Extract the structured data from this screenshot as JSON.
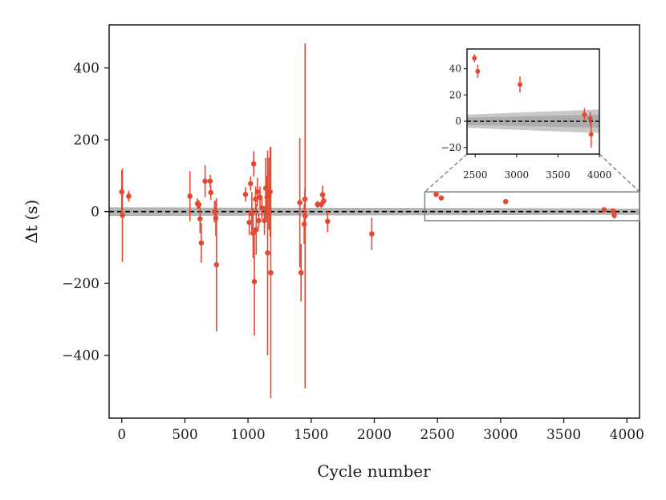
{
  "chart_data": {
    "type": "scatter",
    "xlabel": "Cycle number",
    "ylabel": "Δt (s)",
    "xlim": [
      -100,
      4100
    ],
    "ylim": [
      -575,
      520
    ],
    "xticks": [
      0,
      500,
      1000,
      1500,
      2000,
      2500,
      3000,
      3500,
      4000
    ],
    "yticks": [
      -400,
      -200,
      0,
      200,
      400
    ],
    "xtick_labels": [
      "0",
      "500",
      "1000",
      "1500",
      "2000",
      "2500",
      "3000",
      "3500",
      "4000"
    ],
    "ytick_labels": [
      "−400",
      "−200",
      "0",
      "200",
      "400"
    ],
    "point_color": "#e34a33",
    "band_color": "#9a9a9a",
    "reference_line": {
      "value": 0,
      "style": "dashed",
      "color": "#000000"
    },
    "band": {
      "x": [
        -100,
        4100
      ],
      "halfwidth": [
        12,
        9
      ]
    },
    "series": [
      {
        "points": [
          {
            "x": 0,
            "y": 55,
            "err": 60
          },
          {
            "x": 5,
            "y": -10,
            "err": 130
          },
          {
            "x": 55,
            "y": 43,
            "err": 15
          },
          {
            "x": 540,
            "y": 43,
            "err": 70
          },
          {
            "x": 600,
            "y": 22,
            "err": 15
          },
          {
            "x": 610,
            "y": 20,
            "err": 12
          },
          {
            "x": 620,
            "y": -20,
            "err": 40
          },
          {
            "x": 630,
            "y": -87,
            "err": 55
          },
          {
            "x": 660,
            "y": 85,
            "err": 45
          },
          {
            "x": 700,
            "y": 85,
            "err": 18
          },
          {
            "x": 705,
            "y": 53,
            "err": 20
          },
          {
            "x": 735,
            "y": 0,
            "err": 30
          },
          {
            "x": 745,
            "y": -18,
            "err": 50
          },
          {
            "x": 750,
            "y": -148,
            "err": 185
          },
          {
            "x": 980,
            "y": 48,
            "err": 20
          },
          {
            "x": 1010,
            "y": -30,
            "err": 35
          },
          {
            "x": 1020,
            "y": 78,
            "err": 20
          },
          {
            "x": 1030,
            "y": -5,
            "err": 60
          },
          {
            "x": 1040,
            "y": -60,
            "err": 70
          },
          {
            "x": 1045,
            "y": 133,
            "err": 35
          },
          {
            "x": 1050,
            "y": -195,
            "err": 150
          },
          {
            "x": 1060,
            "y": 35,
            "err": 35
          },
          {
            "x": 1065,
            "y": -50,
            "err": 70
          },
          {
            "x": 1075,
            "y": 55,
            "err": 40
          },
          {
            "x": 1085,
            "y": -25,
            "err": 20
          },
          {
            "x": 1095,
            "y": 40,
            "err": 30
          },
          {
            "x": 1110,
            "y": 10,
            "err": 30
          },
          {
            "x": 1130,
            "y": -25,
            "err": 40
          },
          {
            "x": 1140,
            "y": 65,
            "err": 85
          },
          {
            "x": 1150,
            "y": 40,
            "err": 60
          },
          {
            "x": 1155,
            "y": -115,
            "err": 285
          },
          {
            "x": 1165,
            "y": 50,
            "err": 100
          },
          {
            "x": 1175,
            "y": 55,
            "err": 125
          },
          {
            "x": 1180,
            "y": -170,
            "err": 350
          },
          {
            "x": 1410,
            "y": 25,
            "err": 180
          },
          {
            "x": 1420,
            "y": -170,
            "err": 80
          },
          {
            "x": 1445,
            "y": -35,
            "err": 55
          },
          {
            "x": 1450,
            "y": 35,
            "err": 30
          },
          {
            "x": 1452,
            "y": -12,
            "err": 480
          },
          {
            "x": 1550,
            "y": 20,
            "err": 10
          },
          {
            "x": 1580,
            "y": 20,
            "err": 10
          },
          {
            "x": 1590,
            "y": 47,
            "err": 25
          },
          {
            "x": 1600,
            "y": 30,
            "err": 10
          },
          {
            "x": 1630,
            "y": -27,
            "err": 30
          },
          {
            "x": 1980,
            "y": -62,
            "err": 45
          },
          {
            "x": 2490,
            "y": 48,
            "err": 3
          },
          {
            "x": 2530,
            "y": 38,
            "err": 5
          },
          {
            "x": 3040,
            "y": 28,
            "err": 6
          },
          {
            "x": 3820,
            "y": 5,
            "err": 5
          },
          {
            "x": 3890,
            "y": 2,
            "err": 5
          },
          {
            "x": 3900,
            "y": -10,
            "err": 10
          }
        ]
      }
    ],
    "inset": {
      "xlim": [
        2400,
        4000
      ],
      "ylim": [
        -25,
        55
      ],
      "xticks": [
        2500,
        3000,
        3500,
        4000
      ],
      "yticks": [
        -20,
        0,
        20,
        40
      ],
      "xtick_labels": [
        "2500",
        "3000",
        "3500",
        "4000"
      ],
      "ytick_labels": [
        "−20",
        "0",
        "20",
        "40"
      ],
      "band_halfwidth": [
        5,
        9
      ],
      "zoom_region": {
        "x": [
          2400,
          4100
        ],
        "y": [
          -25,
          55
        ]
      }
    }
  }
}
